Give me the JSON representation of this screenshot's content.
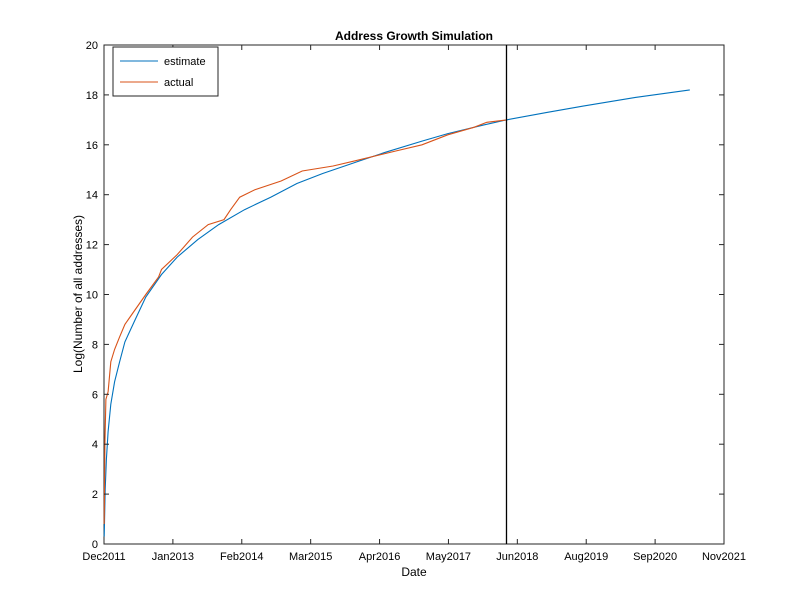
{
  "chart_data": {
    "type": "line",
    "title": "Address Growth Simulation",
    "xlabel": "Date",
    "ylabel": "Log(Number of all addresses)",
    "xlim": [
      "2011-12",
      "2021-11"
    ],
    "ylim": [
      0,
      20
    ],
    "x_ticks": [
      "Dec2011",
      "Jan2013",
      "Feb2014",
      "Mar2015",
      "Apr2016",
      "May2017",
      "Jun2018",
      "Aug2019",
      "Sep2020",
      "Nov2021"
    ],
    "y_ticks": [
      0,
      2,
      4,
      6,
      8,
      10,
      12,
      14,
      16,
      18,
      20
    ],
    "grid": false,
    "legend_position": "top-left",
    "vertical_line": {
      "x": "2018-05-10",
      "color": "#000000"
    },
    "series": [
      {
        "name": "estimate",
        "color": "#0072bd",
        "points": [
          [
            "2011-12-02",
            0.3
          ],
          [
            "2011-12-08",
            2.2
          ],
          [
            "2011-12-15",
            3.4
          ],
          [
            "2011-12-25",
            4.5
          ],
          [
            "2012-01-10",
            5.6
          ],
          [
            "2012-02-01",
            6.5
          ],
          [
            "2012-03-01",
            7.3
          ],
          [
            "2012-04-01",
            8.1
          ],
          [
            "2012-06-01",
            9.0
          ],
          [
            "2012-08-01",
            9.9
          ],
          [
            "2012-11-01",
            10.8
          ],
          [
            "2013-02-01",
            11.5
          ],
          [
            "2013-06-01",
            12.2
          ],
          [
            "2013-10-01",
            12.8
          ],
          [
            "2014-03-01",
            13.4
          ],
          [
            "2014-08-01",
            13.9
          ],
          [
            "2015-01-01",
            14.45
          ],
          [
            "2015-06-01",
            14.85
          ],
          [
            "2016-01-01",
            15.35
          ],
          [
            "2016-06-01",
            15.7
          ],
          [
            "2017-01-01",
            16.15
          ],
          [
            "2017-06-01",
            16.45
          ],
          [
            "2018-01-01",
            16.8
          ],
          [
            "2018-05-10",
            17.0
          ],
          [
            "2019-01-01",
            17.3
          ],
          [
            "2019-08-01",
            17.55
          ],
          [
            "2020-06-01",
            17.9
          ],
          [
            "2021-04-15",
            18.2
          ]
        ]
      },
      {
        "name": "actual",
        "color": "#d95319",
        "points": [
          [
            "2011-12-02",
            0.8
          ],
          [
            "2011-12-06",
            4.0
          ],
          [
            "2011-12-12",
            5.8
          ],
          [
            "2011-12-25",
            6.1
          ],
          [
            "2012-01-10",
            7.3
          ],
          [
            "2012-02-01",
            7.8
          ],
          [
            "2012-03-01",
            8.3
          ],
          [
            "2012-04-01",
            8.8
          ],
          [
            "2012-06-01",
            9.4
          ],
          [
            "2012-08-01",
            10.0
          ],
          [
            "2012-10-15",
            10.7
          ],
          [
            "2012-11-01",
            11.0
          ],
          [
            "2013-02-01",
            11.6
          ],
          [
            "2013-05-01",
            12.3
          ],
          [
            "2013-08-01",
            12.8
          ],
          [
            "2013-11-01",
            13.0
          ],
          [
            "2013-12-10",
            13.4
          ],
          [
            "2014-02-01",
            13.9
          ],
          [
            "2014-05-01",
            14.2
          ],
          [
            "2014-10-01",
            14.55
          ],
          [
            "2015-02-01",
            14.95
          ],
          [
            "2015-08-01",
            15.15
          ],
          [
            "2016-01-01",
            15.4
          ],
          [
            "2016-08-01",
            15.75
          ],
          [
            "2017-01-01",
            16.0
          ],
          [
            "2017-06-01",
            16.4
          ],
          [
            "2017-11-01",
            16.7
          ],
          [
            "2018-01-15",
            16.9
          ],
          [
            "2018-05-10",
            17.0
          ]
        ]
      }
    ]
  }
}
